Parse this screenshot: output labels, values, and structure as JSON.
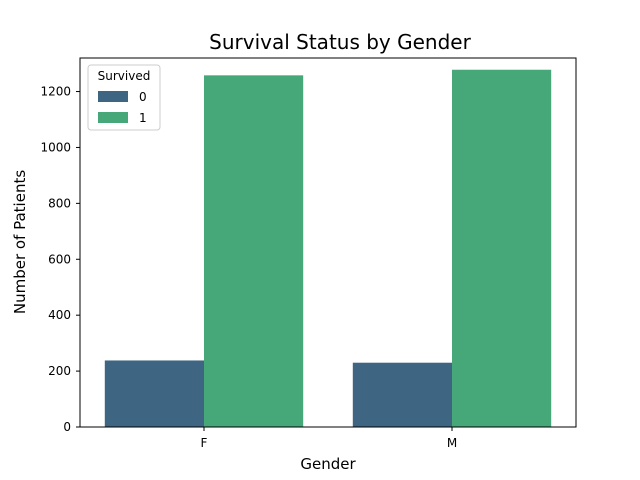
{
  "chart_data": {
    "type": "bar",
    "title": "Survival Status by Gender",
    "xlabel": "Gender",
    "ylabel": "Number of Patients",
    "categories": [
      "F",
      "M"
    ],
    "series": [
      {
        "name": "0",
        "values": [
          238,
          230
        ],
        "color": "#3e6582"
      },
      {
        "name": "1",
        "values": [
          1258,
          1278
        ],
        "color": "#46a878"
      }
    ],
    "ylim": [
      0,
      1320
    ],
    "yticks": [
      0,
      200,
      400,
      600,
      800,
      1000,
      1200
    ],
    "grid": false,
    "legend": {
      "title": "Survived",
      "placement": "top-left"
    }
  }
}
